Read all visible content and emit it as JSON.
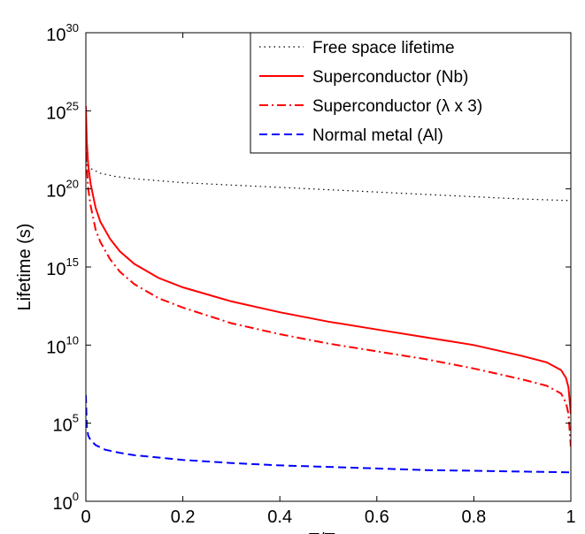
{
  "chart_data": {
    "type": "line",
    "xlabel": {
      "main": "T/T",
      "sub": "c"
    },
    "ylabel": "Lifetime (s)",
    "xlim": [
      0,
      1
    ],
    "ylim_log10": [
      0,
      30
    ],
    "y_scale": "log",
    "legend_position": "top-right",
    "grid": false,
    "x_ticks": [
      {
        "value": 0,
        "label": "0"
      },
      {
        "value": 0.2,
        "label": "0.2"
      },
      {
        "value": 0.4,
        "label": "0.4"
      },
      {
        "value": 0.6,
        "label": "0.6"
      },
      {
        "value": 0.8,
        "label": "0.8"
      },
      {
        "value": 1,
        "label": "1"
      }
    ],
    "y_ticks": [
      {
        "exp": 0,
        "base": "10",
        "sup": "0"
      },
      {
        "exp": 5,
        "base": "10",
        "sup": "5"
      },
      {
        "exp": 10,
        "base": "10",
        "sup": "10"
      },
      {
        "exp": 15,
        "base": "10",
        "sup": "15"
      },
      {
        "exp": 20,
        "base": "10",
        "sup": "20"
      },
      {
        "exp": 25,
        "base": "10",
        "sup": "25"
      },
      {
        "exp": 30,
        "base": "10",
        "sup": "30"
      }
    ],
    "series": [
      {
        "name": "Free space lifetime",
        "color": "#000000",
        "style": "dotted",
        "x": [
          0,
          0.01,
          0.03,
          0.06,
          0.1,
          0.2,
          0.3,
          0.4,
          0.5,
          0.6,
          0.7,
          0.8,
          0.9,
          1.0
        ],
        "y_log10": [
          21.8,
          21.3,
          21.0,
          20.8,
          20.65,
          20.4,
          20.25,
          20.1,
          19.95,
          19.8,
          19.65,
          19.5,
          19.35,
          19.25
        ]
      },
      {
        "name": "Superconductor (Nb)",
        "color": "#ff0000",
        "style": "solid",
        "x": [
          0,
          0.002,
          0.005,
          0.01,
          0.02,
          0.03,
          0.05,
          0.07,
          0.1,
          0.15,
          0.2,
          0.3,
          0.4,
          0.5,
          0.6,
          0.7,
          0.8,
          0.9,
          0.95,
          0.98,
          0.99,
          0.995,
          1.0
        ],
        "y_log10": [
          25.3,
          23.0,
          21.5,
          20.3,
          18.8,
          17.9,
          16.8,
          16.0,
          15.2,
          14.3,
          13.7,
          12.8,
          12.1,
          11.5,
          11.0,
          10.5,
          10.0,
          9.3,
          8.9,
          8.4,
          7.9,
          7.3,
          5.6
        ]
      },
      {
        "name": "Superconductor (λ x 3)",
        "color": "#ff0000",
        "style": "dashdot",
        "x": [
          0,
          0.002,
          0.005,
          0.01,
          0.02,
          0.03,
          0.05,
          0.07,
          0.1,
          0.15,
          0.2,
          0.3,
          0.4,
          0.5,
          0.6,
          0.7,
          0.8,
          0.9,
          0.95,
          0.98,
          0.99,
          0.995,
          1.0
        ],
        "y_log10": [
          23.5,
          21.4,
          20.0,
          18.9,
          17.4,
          16.6,
          15.5,
          14.7,
          13.9,
          13.0,
          12.4,
          11.4,
          10.7,
          10.1,
          9.6,
          9.1,
          8.5,
          7.8,
          7.4,
          6.9,
          6.3,
          5.6,
          3.5
        ]
      },
      {
        "name": "Normal metal (Al)",
        "color": "#0000ff",
        "style": "dashed",
        "x": [
          0,
          0.002,
          0.005,
          0.01,
          0.02,
          0.04,
          0.07,
          0.1,
          0.2,
          0.3,
          0.4,
          0.5,
          0.6,
          0.7,
          0.8,
          0.9,
          1.0
        ],
        "y_log10": [
          6.8,
          4.8,
          4.2,
          3.9,
          3.6,
          3.3,
          3.1,
          2.95,
          2.65,
          2.45,
          2.3,
          2.2,
          2.1,
          2.0,
          1.95,
          1.9,
          1.85
        ]
      }
    ]
  }
}
